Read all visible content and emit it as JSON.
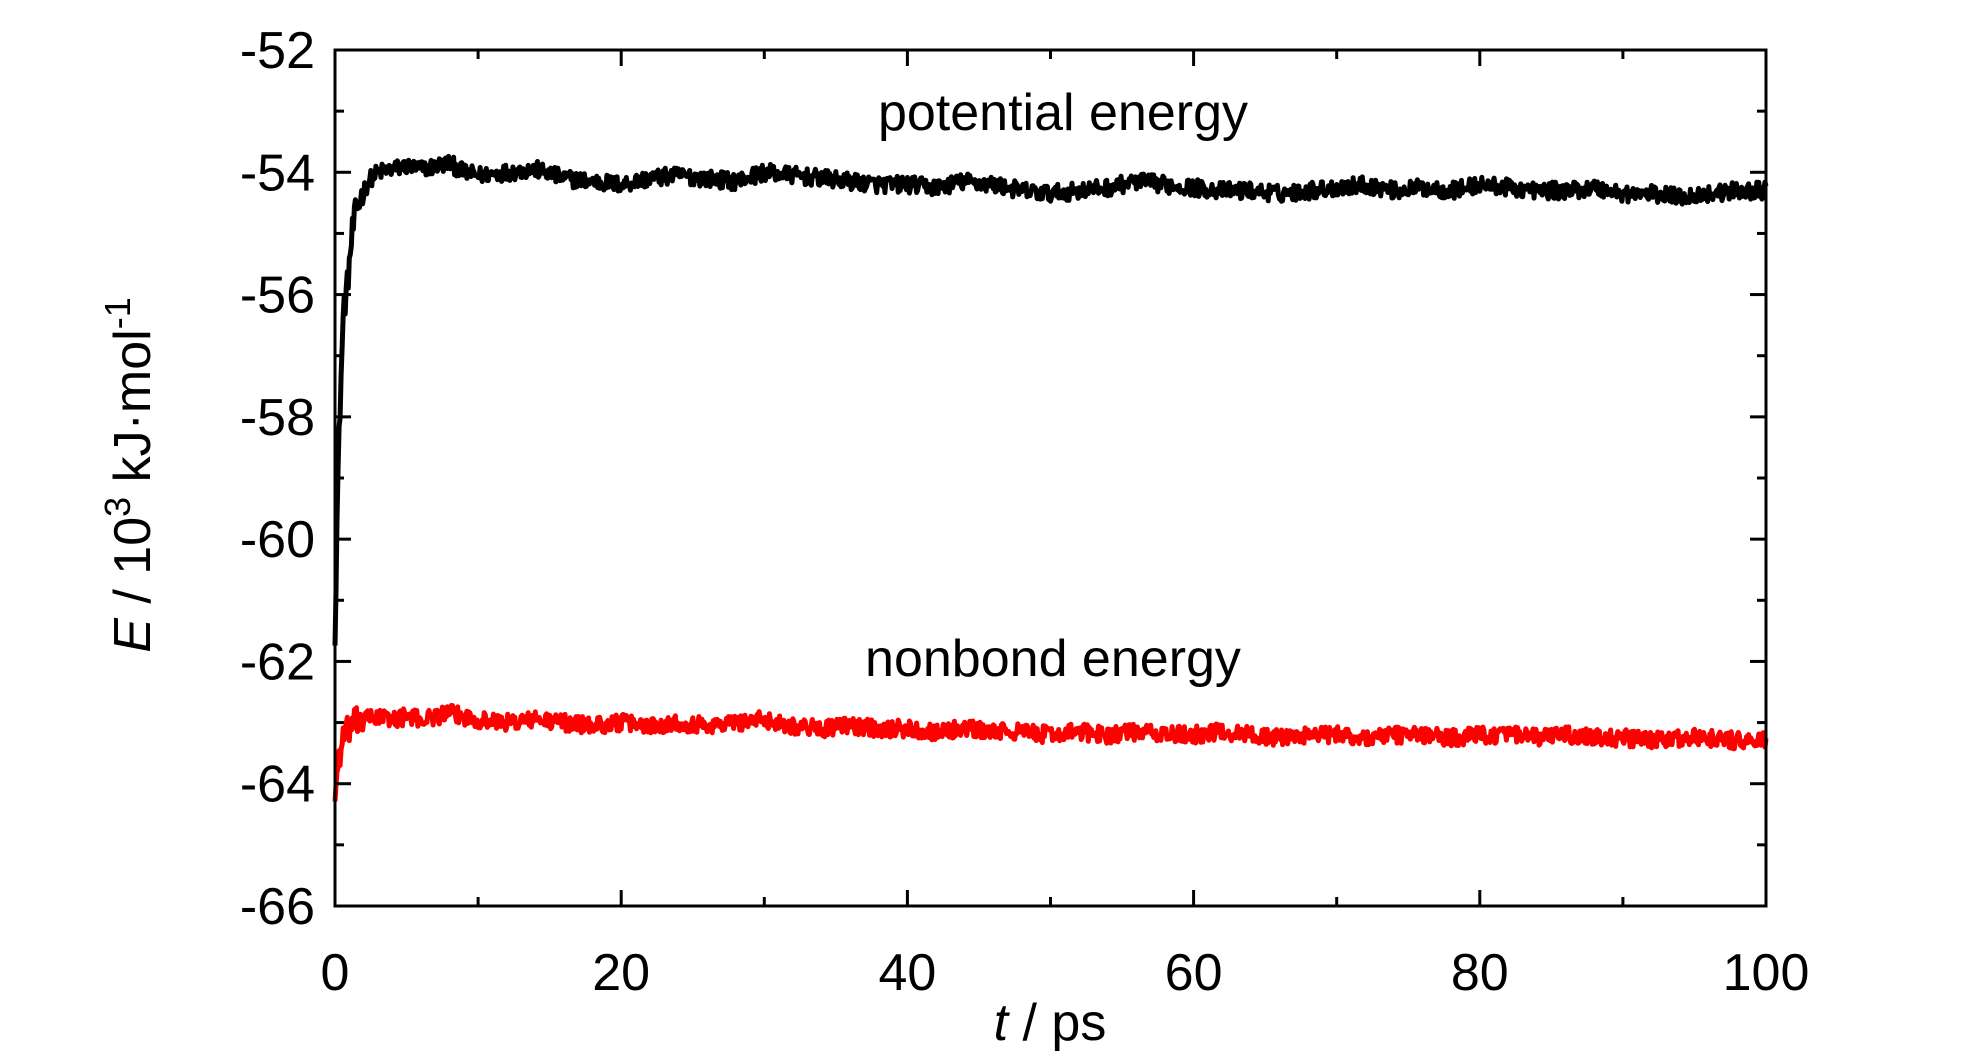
{
  "chart_data": {
    "type": "line",
    "xlabel": {
      "italic": "t",
      "rest": " / ps"
    },
    "ylabel": {
      "italic": "E",
      "mid": " / 10",
      "sup1": "3",
      "post": " kJ·mol",
      "sup2": "-1"
    },
    "xlim": [
      0,
      100
    ],
    "ylim": [
      -66,
      -52
    ],
    "xticks": [
      0,
      20,
      40,
      60,
      80,
      100
    ],
    "xtick_labels": [
      "0",
      "20",
      "40",
      "60",
      "80",
      "100"
    ],
    "yticks": [
      -66,
      -64,
      -62,
      -60,
      -58,
      -56,
      -54,
      -52
    ],
    "ytick_labels": [
      "-66",
      "-64",
      "-62",
      "-60",
      "-58",
      "-56",
      "-54",
      "-52"
    ],
    "grid": false,
    "annotations": [
      "potential energy",
      "nonbond energy"
    ],
    "series": [
      {
        "color": "#000000",
        "x": [
          0,
          0.2,
          0.4,
          0.6,
          0.8,
          1.0,
          1.2,
          1.5,
          2.0,
          2.5,
          3,
          4,
          5,
          6,
          7,
          8,
          9,
          10,
          12,
          14,
          16,
          18,
          20,
          22,
          24,
          26,
          28,
          30,
          32,
          34,
          36,
          38,
          40,
          42,
          44,
          46,
          48,
          50,
          52,
          54,
          56,
          58,
          60,
          62,
          64,
          66,
          68,
          70,
          72,
          74,
          76,
          78,
          80,
          82,
          84,
          86,
          88,
          90,
          92,
          94,
          96,
          98,
          100
        ],
        "y": [
          -61.5,
          -59.0,
          -57.5,
          -56.2,
          -56.0,
          -55.5,
          -55.0,
          -54.6,
          -54.3,
          -54.1,
          -54.0,
          -53.95,
          -53.9,
          -53.95,
          -53.9,
          -53.85,
          -54.0,
          -54.05,
          -54.0,
          -53.95,
          -54.1,
          -54.15,
          -54.2,
          -54.1,
          -54.05,
          -54.1,
          -54.15,
          -54.0,
          -54.05,
          -54.1,
          -54.15,
          -54.2,
          -54.2,
          -54.25,
          -54.15,
          -54.2,
          -54.3,
          -54.35,
          -54.3,
          -54.25,
          -54.15,
          -54.2,
          -54.25,
          -54.3,
          -54.3,
          -54.35,
          -54.3,
          -54.25,
          -54.2,
          -54.3,
          -54.25,
          -54.3,
          -54.2,
          -54.25,
          -54.3,
          -54.3,
          -54.25,
          -54.35,
          -54.35,
          -54.4,
          -54.35,
          -54.3,
          -54.3
        ]
      },
      {
        "color": "#ff0000",
        "x": [
          0,
          0.2,
          0.5,
          1.0,
          1.5,
          2,
          3,
          4,
          5,
          6,
          8,
          10,
          12,
          14,
          16,
          18,
          20,
          22,
          24,
          26,
          28,
          30,
          32,
          34,
          36,
          38,
          40,
          42,
          44,
          46,
          48,
          50,
          52,
          54,
          56,
          58,
          60,
          62,
          64,
          66,
          68,
          70,
          72,
          74,
          76,
          78,
          80,
          82,
          84,
          86,
          88,
          90,
          92,
          94,
          96,
          98,
          100
        ],
        "y": [
          -64.2,
          -63.7,
          -63.3,
          -63.1,
          -63.0,
          -62.95,
          -62.9,
          -62.95,
          -62.9,
          -62.95,
          -62.85,
          -62.95,
          -63.0,
          -62.95,
          -63.0,
          -63.05,
          -63.0,
          -63.05,
          -63.0,
          -63.05,
          -63.0,
          -62.95,
          -63.05,
          -63.1,
          -63.05,
          -63.1,
          -63.1,
          -63.15,
          -63.1,
          -63.15,
          -63.15,
          -63.2,
          -63.15,
          -63.2,
          -63.15,
          -63.2,
          -63.2,
          -63.15,
          -63.2,
          -63.25,
          -63.2,
          -63.2,
          -63.25,
          -63.2,
          -63.2,
          -63.25,
          -63.2,
          -63.2,
          -63.25,
          -63.2,
          -63.25,
          -63.25,
          -63.3,
          -63.25,
          -63.25,
          -63.3,
          -63.3
        ]
      }
    ]
  }
}
